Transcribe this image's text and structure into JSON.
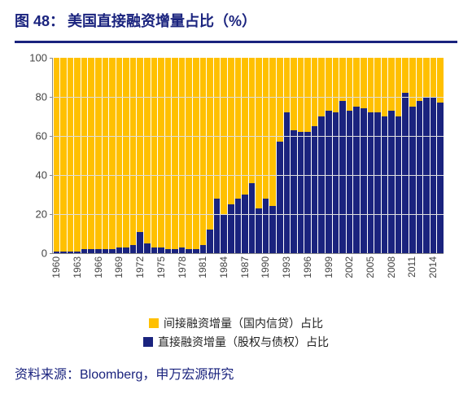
{
  "title": {
    "prefix": "图 48：",
    "text": "美国直接融资增量占比（%）"
  },
  "source": "资料来源：Bloomberg，申万宏源研究",
  "chart": {
    "type": "stacked-bar",
    "ylim": [
      0,
      100
    ],
    "ytick_step": 20,
    "colors": {
      "indirect": "#ffc000",
      "direct": "#1a237e",
      "grid": "#dddddd",
      "axis": "#888888",
      "bg": "#ffffff"
    },
    "legend": {
      "indirect": "间接融资增量（国内信贷）占比",
      "direct": "直接融资增量（股权与债权）占比"
    },
    "x_labels_every": 3,
    "years": [
      1960,
      1961,
      1962,
      1963,
      1964,
      1965,
      1966,
      1967,
      1968,
      1969,
      1970,
      1971,
      1972,
      1973,
      1974,
      1975,
      1976,
      1977,
      1978,
      1979,
      1980,
      1981,
      1982,
      1983,
      1984,
      1985,
      1986,
      1987,
      1988,
      1989,
      1990,
      1991,
      1992,
      1993,
      1994,
      1995,
      1996,
      1997,
      1998,
      1999,
      2000,
      2001,
      2002,
      2003,
      2004,
      2005,
      2006,
      2007,
      2008,
      2009,
      2010,
      2011,
      2012,
      2013,
      2014,
      2015
    ],
    "direct_values": [
      1,
      1,
      1,
      1,
      2,
      2,
      2,
      2,
      2,
      3,
      3,
      4,
      11,
      5,
      3,
      3,
      2,
      2,
      3,
      2,
      2,
      4,
      12,
      28,
      20,
      25,
      28,
      30,
      36,
      23,
      28,
      24,
      57,
      72,
      63,
      62,
      62,
      65,
      70,
      73,
      72,
      78,
      73,
      75,
      74,
      72,
      72,
      70,
      73,
      70,
      82,
      75,
      78,
      80,
      80,
      77
    ]
  }
}
